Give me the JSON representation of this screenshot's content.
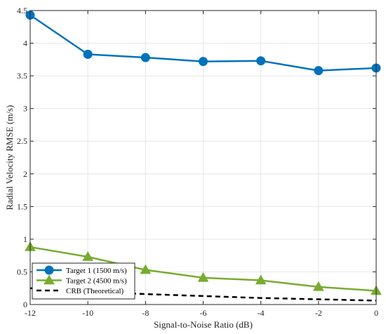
{
  "chart_data": {
    "type": "line",
    "title": "",
    "xlabel": "Signal-to-Noise Ratio (dB)",
    "ylabel": "Radial Velocity RMSE (m/s)",
    "xlim": [
      -12,
      0
    ],
    "ylim": [
      0,
      4.5
    ],
    "xticks": [
      -12,
      -10,
      -8,
      -6,
      -4,
      -2,
      0
    ],
    "yticks": [
      0,
      0.5,
      1,
      1.5,
      2,
      2.5,
      3,
      3.5,
      4,
      4.5
    ],
    "grid": true,
    "legend_position": "bottom-left",
    "x": [
      -12,
      -10,
      -8,
      -6,
      -4,
      -2,
      0
    ],
    "series": [
      {
        "name": "Target 1 (1500 m/s)",
        "values": [
          4.43,
          3.83,
          3.78,
          3.72,
          3.73,
          3.58,
          3.62
        ],
        "color": "#0072BD",
        "marker": "circle",
        "line_style": "solid"
      },
      {
        "name": "Target 2 (4500 m/s)",
        "values": [
          0.88,
          0.73,
          0.53,
          0.41,
          0.37,
          0.27,
          0.21
        ],
        "color": "#77AC30",
        "marker": "triangle",
        "line_style": "solid"
      },
      {
        "name": "CRB (Theoretical)",
        "values": [
          0.25,
          0.2,
          0.16,
          0.13,
          0.1,
          0.08,
          0.06
        ],
        "color": "#000000",
        "marker": "none",
        "line_style": "dashed"
      }
    ]
  }
}
